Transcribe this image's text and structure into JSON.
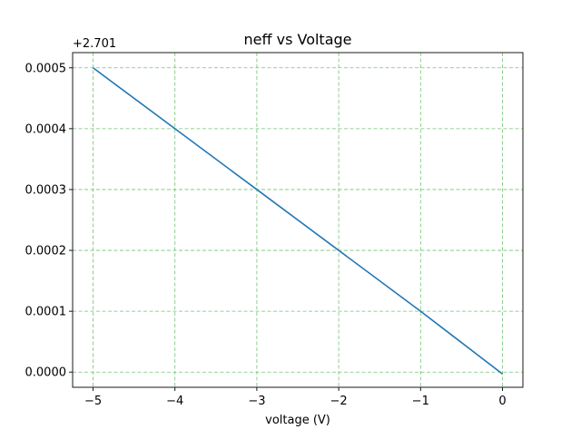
{
  "chart_data": {
    "type": "line",
    "title": "neff vs Voltage",
    "xlabel": "voltage (V)",
    "ylabel": "",
    "y_offset_label": "+2.701",
    "y_offset": 2.701,
    "xlim": [
      -5.25,
      0.25
    ],
    "ylim": [
      -2.5e-05,
      0.000525
    ],
    "x_ticks": [
      -5,
      -4,
      -3,
      -2,
      -1,
      0
    ],
    "x_tick_labels": [
      "−5",
      "−4",
      "−3",
      "−2",
      "−1",
      "0"
    ],
    "y_ticks": [
      0,
      0.0001,
      0.0002,
      0.0003,
      0.0004,
      0.0005
    ],
    "y_tick_labels": [
      "0.0000",
      "0.0001",
      "0.0002",
      "0.0003",
      "0.0004",
      "0.0005"
    ],
    "grid": true,
    "grid_color": "#5cb85c",
    "series": [
      {
        "name": "neff",
        "color": "#1f77b4",
        "x": [
          -5,
          -4,
          -3,
          -2,
          -1,
          0
        ],
        "y": [
          0.0005,
          0.0004,
          0.0003,
          0.0002,
          0.0001,
          -3e-06
        ]
      }
    ]
  }
}
